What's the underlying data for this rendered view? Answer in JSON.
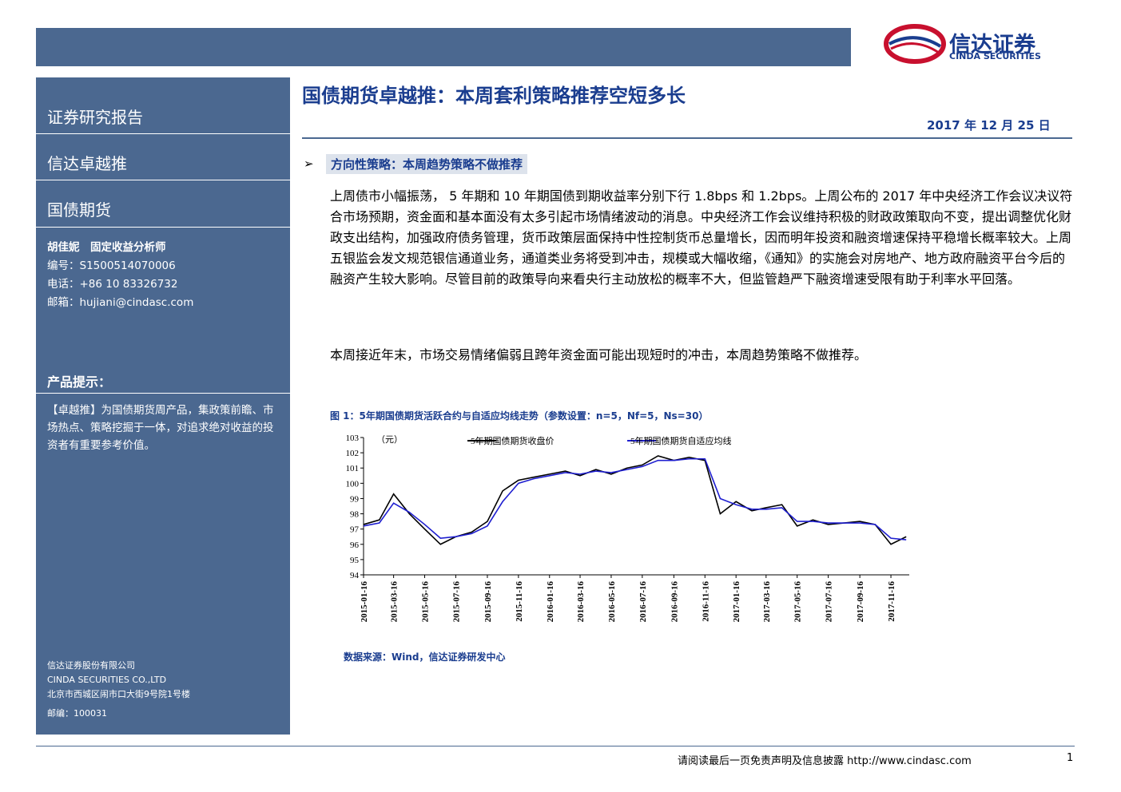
{
  "header": {
    "logo_cn": "信达证券",
    "logo_en": "CINDA SECURITIES",
    "title": "国债期货卓越推：本周套利策略推荐空短多长",
    "date": "2017 年 12 月 25 日"
  },
  "sidebar": {
    "report_type": "证券研究报告",
    "product": "信达卓越推",
    "category": "国债期货",
    "analyst": "胡佳妮　固定收益分析师",
    "id": "编号：S1500514070006",
    "phone": "电话：+86 10 83326732",
    "email": "邮箱：hujiani@cindasc.com",
    "tip_title": "产品提示：",
    "tip_text": "【卓越推】为国债期货周产品，集政策前瞻、市场热点、策略挖掘于一体，对追求绝对收益的投资者有重要参考价值。",
    "company_cn": "信达证券股份有限公司",
    "company_en": "CINDA SECURITIES CO.,LTD",
    "address": "北京市西城区闹市口大街9号院1号楼",
    "postcode": "邮编：100031"
  },
  "body": {
    "section_title": "方向性策略：本周趋势策略不做推荐",
    "paragraphs": [
      "上周债市小幅振荡， 5 年期和 10 年期国债到期收益率分别下行 1.8bps 和 1.2bps。上周公布的 2017 年中央经济工作会议决议符合市场预期，资金面和基本面没有太多引起市场情绪波动的消息。中央经济工作会议维持积极的财政政策取向不变，提出调整优化财政支出结构，加强政府债务管理，货币政策层面保持中性控制货币总量增长，因而明年投资和融资增速保持平稳增长概率较大。上周五银监会发文规范银信通道业务，通道类业务将受到冲击，规模或大幅收缩，《通知》的实施会对房地产、地方政府融资平台今后的融资产生较大影响。尽管目前的政策导向来看央行主动放松的概率不大，但监管趋严下融资增速受限有助于利率水平回落。",
      "本周接近年末，市场交易情绪偏弱且跨年资金面可能出现短时的冲击，本周趋势策略不做推荐。"
    ],
    "source": "数据来源：Wind，信达证券研发中心"
  },
  "chart_data": {
    "type": "line",
    "title": "图 1：5年期国债期货活跃合约与自适应均线走势（参数设置：n=5，Nf=5，Ns=30）",
    "y_label": "（元）",
    "x": [
      "2015-01-16",
      "2015-02-16",
      "2015-03-16",
      "2015-04-16",
      "2015-05-16",
      "2015-06-16",
      "2015-07-16",
      "2015-08-16",
      "2015-09-16",
      "2015-10-16",
      "2015-11-16",
      "2015-12-16",
      "2016-01-16",
      "2016-02-16",
      "2016-03-16",
      "2016-04-16",
      "2016-05-16",
      "2016-06-16",
      "2016-07-16",
      "2016-08-16",
      "2016-09-16",
      "2016-10-16",
      "2016-11-16",
      "2016-12-16",
      "2017-01-16",
      "2017-02-16",
      "2017-03-16",
      "2017-04-16",
      "2017-05-16",
      "2017-06-16",
      "2017-07-16",
      "2017-08-16",
      "2017-09-16",
      "2017-10-16",
      "2017-11-16",
      "2017-12-16"
    ],
    "series": [
      {
        "name": "5年期国债期货收盘价",
        "color": "#000000",
        "values": [
          97.3,
          97.6,
          99.3,
          98.0,
          97.0,
          96.0,
          96.5,
          96.8,
          97.5,
          99.5,
          100.2,
          100.4,
          100.6,
          100.8,
          100.5,
          100.9,
          100.6,
          101.0,
          101.2,
          101.8,
          101.5,
          101.7,
          101.5,
          98.0,
          98.8,
          98.2,
          98.4,
          98.6,
          97.2,
          97.6,
          97.3,
          97.4,
          97.5,
          97.3,
          96.0,
          96.5
        ]
      },
      {
        "name": "5年期国债期货自适应均线",
        "color": "#1f1fd0",
        "values": [
          97.2,
          97.4,
          98.7,
          98.1,
          97.3,
          96.4,
          96.5,
          96.7,
          97.2,
          98.8,
          100.0,
          100.3,
          100.5,
          100.7,
          100.6,
          100.8,
          100.7,
          100.9,
          101.1,
          101.5,
          101.5,
          101.6,
          101.6,
          99.0,
          98.6,
          98.3,
          98.3,
          98.4,
          97.5,
          97.5,
          97.4,
          97.4,
          97.4,
          97.3,
          96.4,
          96.3
        ]
      }
    ],
    "xlim": [
      "2015-01-16",
      "2017-12-22"
    ],
    "xticks": [
      "2015-01-16",
      "2015-03-16",
      "2015-05-16",
      "2015-07-16",
      "2015-09-16",
      "2015-11-16",
      "2016-01-16",
      "2016-03-16",
      "2016-05-16",
      "2016-07-16",
      "2016-09-16",
      "2016-11-16",
      "2017-01-16",
      "2017-03-16",
      "2017-05-16",
      "2017-07-16",
      "2017-09-16",
      "2017-11-16"
    ],
    "ylim": [
      94,
      103
    ],
    "yticks": [
      94,
      95,
      96,
      97,
      98,
      99,
      100,
      101,
      102,
      103
    ]
  },
  "footer": {
    "disclaimer": "请阅读最后一页免责声明及信息披露 http://www.cindasc.com",
    "page": "1"
  }
}
